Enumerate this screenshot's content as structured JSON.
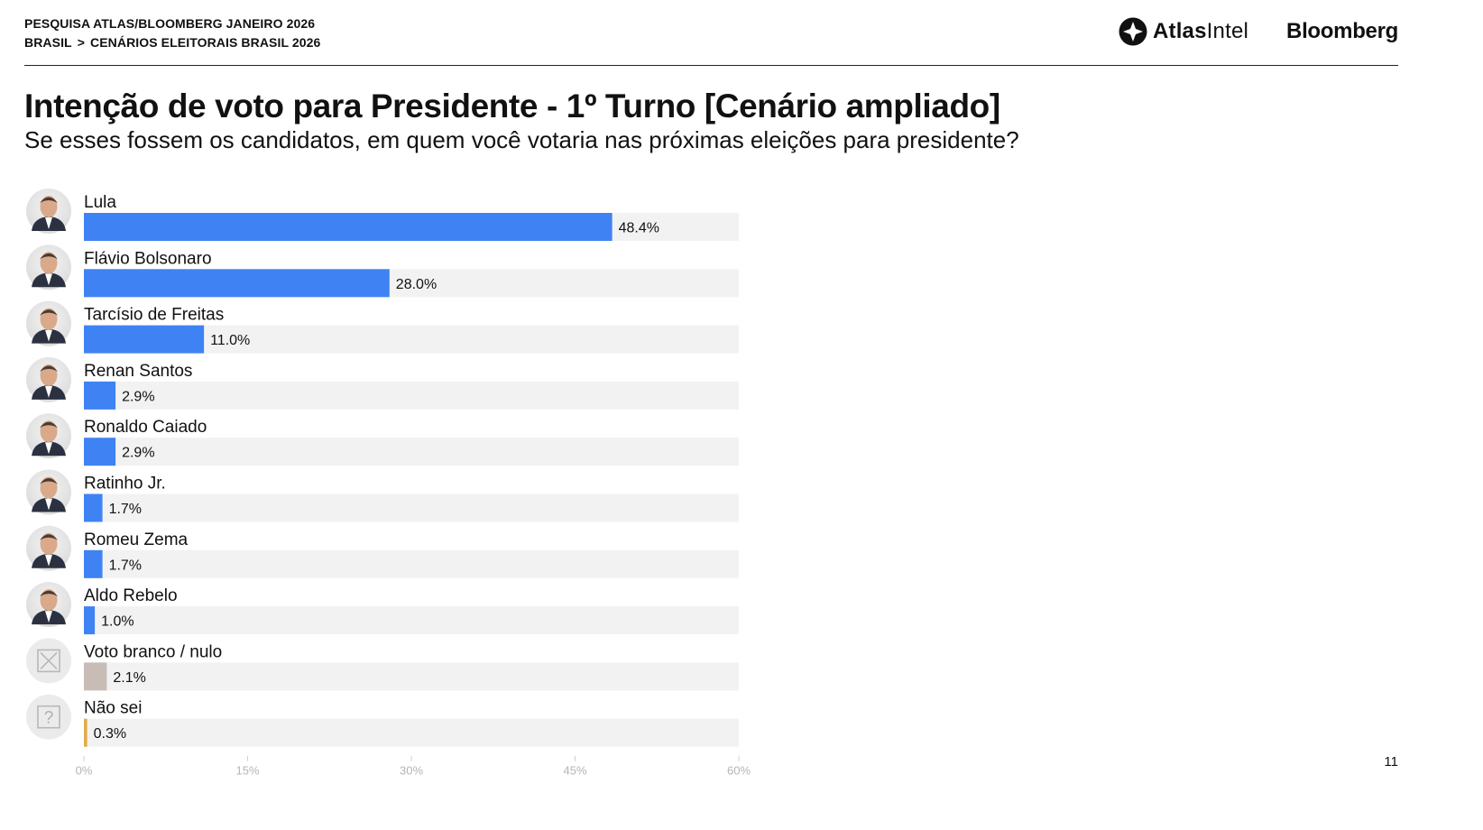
{
  "header": {
    "line1": "PESQUISA ATLAS/BLOOMBERG JANEIRO 2026",
    "breadcrumb_root": "BRASIL",
    "breadcrumb_sep": ">",
    "breadcrumb_page": "CENÁRIOS ELEITORAIS BRASIL 2026",
    "logo_atlas_bold": "Atlas",
    "logo_atlas_light": "Intel",
    "logo_bloomberg": "Bloomberg"
  },
  "title": "Intenção de voto para Presidente - 1º Turno [Cenário ampliado]",
  "subtitle": "Se esses fossem os candidatos, em quem você votaria nas próximas eleições para presidente?",
  "page_number": "11",
  "colors": {
    "candidate_bar": "#3f82f3",
    "blank_bar": "#c8bdb6",
    "unsure_bar": "#e2ac4a",
    "track": "#f2f2f2",
    "axis_text": "#b5b5b5"
  },
  "chart_data": {
    "type": "bar",
    "orientation": "horizontal",
    "categories": [
      "Lula",
      "Flávio Bolsonaro",
      "Tarcísio de Freitas",
      "Renan Santos",
      "Ronaldo Caiado",
      "Ratinho Jr.",
      "Romeu Zema",
      "Aldo Rebelo",
      "Voto branco / nulo",
      "Não sei"
    ],
    "values": [
      48.4,
      28.0,
      11.0,
      2.9,
      2.9,
      1.7,
      1.7,
      1.0,
      2.1,
      0.3
    ],
    "value_labels": [
      "48.4%",
      "28.0%",
      "11.0%",
      "2.9%",
      "2.9%",
      "1.7%",
      "1.7%",
      "1.0%",
      "2.1%",
      "0.3%"
    ],
    "bar_colors": [
      "#3f82f3",
      "#3f82f3",
      "#3f82f3",
      "#3f82f3",
      "#3f82f3",
      "#3f82f3",
      "#3f82f3",
      "#3f82f3",
      "#c8bdb6",
      "#e2ac4a"
    ],
    "avatar_icons": [
      "person-photo",
      "person-photo",
      "person-photo",
      "person-photo",
      "person-photo",
      "person-photo",
      "person-photo",
      "person-photo",
      "blank-vote-icon",
      "question-icon"
    ],
    "xlim": [
      0,
      60
    ],
    "xticks": [
      0,
      15,
      30,
      45,
      60
    ],
    "xtick_labels": [
      "0%",
      "15%",
      "30%",
      "45%",
      "60%"
    ],
    "xlabel": "",
    "ylabel": "",
    "grid": false,
    "legend": "none"
  }
}
